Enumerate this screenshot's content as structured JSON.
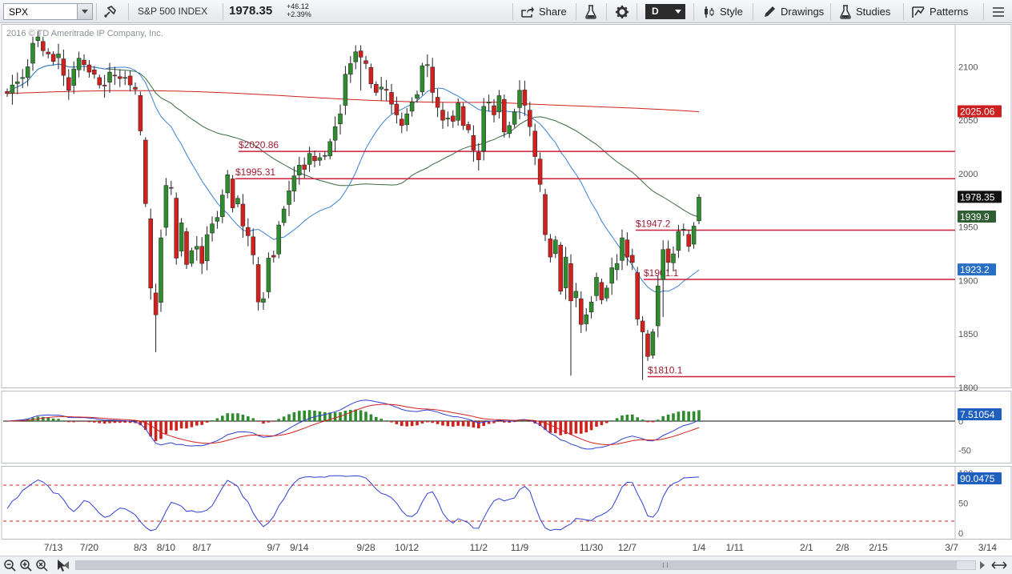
{
  "toolbar": {
    "symbol": "SPX",
    "title": "S&P 500 INDEX",
    "price": "1978.35",
    "change": "+46.12",
    "change_pct": "+2.39%",
    "share_label": "Share",
    "aggregation": "D",
    "style_label": "Style",
    "drawings_label": "Drawings",
    "studies_label": "Studies",
    "patterns_label": "Patterns"
  },
  "copyright": "2016 © TD Ameritrade IP Company, Inc.",
  "chart_data": [
    {
      "type": "candlestick",
      "ylim": [
        1800,
        2140
      ],
      "y_ticks": [
        1800,
        1850,
        1900,
        1950,
        2000,
        2050,
        2100
      ],
      "x_ticks": [
        "7/13",
        "7/20",
        "8/3",
        "8/10",
        "8/17",
        "9/7",
        "9/14",
        "9/28",
        "10/12",
        "11/2",
        "11/9",
        "11/30",
        "12/7",
        "1/4",
        "1/11",
        "2/1",
        "2/8",
        "2/15",
        "3/7",
        "3/14"
      ],
      "closes": [
        2075,
        2083,
        2086,
        2090,
        2100,
        2122,
        2128,
        2115,
        2112,
        2105,
        2112,
        2092,
        2078,
        2098,
        2108,
        2102,
        2095,
        2093,
        2083,
        2082,
        2095,
        2092,
        2089,
        2090,
        2083,
        2079,
        2040,
        1972,
        1893,
        1868,
        1940,
        1989,
        1987,
        1921,
        1954,
        1915,
        1928,
        1932,
        1916,
        1943,
        1953,
        1959,
        1980,
        1999,
        1968,
        1977,
        1951,
        1942,
        1924,
        1880,
        1883,
        1921,
        1922,
        1952,
        1967,
        1984,
        1998,
        2008,
        2004,
        2019,
        2012,
        2015,
        2017,
        2030,
        2044,
        2056,
        2093,
        2103,
        2114,
        2109,
        2103,
        2084,
        2076,
        2081,
        2078,
        2065,
        2055,
        2045,
        2056,
        2067,
        2074,
        2101,
        2102,
        2076,
        2062,
        2050,
        2052,
        2049,
        2066,
        2045,
        2041,
        2022,
        2013,
        2063,
        2067,
        2055,
        2073,
        2039,
        2045,
        2058,
        2078,
        2064,
        2044,
        2016,
        1990,
        1943,
        1922,
        1938,
        1890,
        1922,
        1881,
        1890,
        1859,
        1868,
        1880,
        1903,
        1882,
        1893,
        1912,
        1916,
        1940,
        1922,
        1917,
        1864,
        1852,
        1829,
        1852,
        1895,
        1929,
        1917,
        1925,
        1946,
        1948,
        1932,
        1951,
        1978
      ],
      "last_label": "1978.35",
      "moving_averages": [
        {
          "period": 200,
          "color": "#d0211e",
          "last_label": "2025.06"
        },
        {
          "period": 50,
          "color": "#3b6b3f",
          "last_label": "1939.9"
        },
        {
          "period": 20,
          "color": "#3a7fd0",
          "last_label": "1923.2"
        }
      ],
      "price_levels": [
        {
          "label": "$2020.86",
          "value": 2020.86
        },
        {
          "label": "$1995.31",
          "value": 1995.31
        },
        {
          "label": "$1947.2",
          "value": 1947.2
        },
        {
          "label": "$1901.1",
          "value": 1901.1
        },
        {
          "label": "$1810.1",
          "value": 1810.1
        }
      ]
    },
    {
      "type": "macd",
      "y_ticks": [
        0,
        -50
      ],
      "last_label": "7.51054",
      "series": [
        {
          "name": "MACD",
          "color": "#2f3fd6"
        },
        {
          "name": "Signal",
          "color": "#d0211e"
        },
        {
          "name": "Histogram",
          "color_pos": "#2e8b2e",
          "color_neg": "#d0211e"
        }
      ]
    },
    {
      "type": "stochastic",
      "ylim": [
        0,
        100
      ],
      "y_ticks": [
        0,
        50,
        100
      ],
      "overbought": 80,
      "oversold": 20,
      "last_label": "90.0475",
      "series": [
        {
          "name": "%K",
          "color": "#2f3fd6"
        }
      ]
    }
  ],
  "colors": {
    "up": "#2e8b2e",
    "down": "#d0211e",
    "axis_label_bg": "#1f5fbf"
  }
}
